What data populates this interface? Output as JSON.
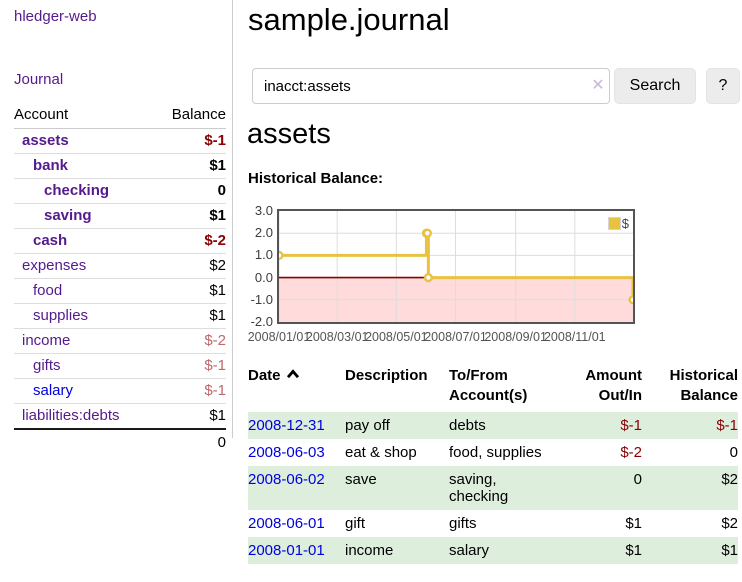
{
  "app": {
    "title": "hledger-web",
    "nav_journal": "Journal"
  },
  "colors": {
    "link_purple": "#551a8b",
    "link_blue": "#0000dd",
    "negative_strong": "#8b0000",
    "negative_soft": "#bb6a6a",
    "row_stripe_green": "#ddeedd",
    "chart_series_gold": "#e8c240",
    "chart_negative_fill": "#ffdbdb",
    "chart_zero_line": "#8b0000",
    "chart_border": "#545454",
    "button_bg": "#ececec"
  },
  "sidebar": {
    "columns": {
      "account": "Account",
      "balance": "Balance"
    },
    "accounts": [
      {
        "name": "assets",
        "indent": 1,
        "bold": true,
        "balance": "$-1",
        "bal_class": "neg-strong"
      },
      {
        "name": "bank",
        "indent": 2,
        "bold": true,
        "balance": "$1",
        "bal_class": ""
      },
      {
        "name": "checking",
        "indent": 3,
        "bold": true,
        "balance": "0",
        "bal_class": ""
      },
      {
        "name": "saving",
        "indent": 3,
        "bold": true,
        "balance": "$1",
        "bal_class": ""
      },
      {
        "name": "cash",
        "indent": 2,
        "bold": true,
        "balance": "$-2",
        "bal_class": "neg-strong"
      },
      {
        "name": "expenses",
        "indent": 1,
        "bold": false,
        "balance": "$2",
        "bal_class": ""
      },
      {
        "name": "food",
        "indent": 2,
        "bold": false,
        "balance": "$1",
        "bal_class": ""
      },
      {
        "name": "supplies",
        "indent": 2,
        "bold": false,
        "balance": "$1",
        "bal_class": ""
      },
      {
        "name": "income",
        "indent": 1,
        "bold": false,
        "balance": "$-2",
        "bal_class": "neg-soft"
      },
      {
        "name": "gifts",
        "indent": 2,
        "bold": false,
        "balance": "$-1",
        "bal_class": "neg-soft"
      },
      {
        "name": "salary",
        "indent": 2,
        "bold": false,
        "balance": "$-1",
        "bal_class": "neg-soft",
        "link_blue": true
      },
      {
        "name": "liabilities:debts",
        "indent": 1,
        "bold": false,
        "balance": "$1",
        "bal_class": ""
      }
    ],
    "total": "0"
  },
  "header": {
    "title": "sample.journal"
  },
  "search": {
    "value": "inacct:assets",
    "clear_icon": "✕",
    "button": "Search",
    "help_button": "?"
  },
  "account_page": {
    "heading": "assets",
    "chart_label": "Historical Balance:"
  },
  "chart_data": {
    "type": "line",
    "step": true,
    "title": "Historical Balance",
    "series": [
      {
        "name": "$",
        "color": "#e8c240",
        "points": [
          [
            "2008-01-01",
            1
          ],
          [
            "2008-06-01",
            2
          ],
          [
            "2008-06-02",
            2
          ],
          [
            "2008-06-03",
            0
          ],
          [
            "2008-12-31",
            -1
          ]
        ]
      }
    ],
    "ylim": [
      -2.0,
      3.0
    ],
    "yticks": [
      "3.0",
      "2.0",
      "1.0",
      "0.0",
      "-1.0",
      "-2.0"
    ],
    "xticks": [
      "2008/01/01",
      "2008/03/01",
      "2008/05/01",
      "2008/07/01",
      "2008/09/01",
      "2008/11/01"
    ],
    "xrange": [
      "2008-01-01",
      "2008-12-31"
    ],
    "grid": true,
    "legend_position": "top-right",
    "legend": "$",
    "negative_fill": "#ffdbdb",
    "zero_line_color": "#8b0000"
  },
  "transactions": {
    "columns": [
      "Date",
      "Description",
      "To/From Account(s)",
      "Amount Out/In",
      "Historical Balance"
    ],
    "sort_icon": "chevron-up",
    "rows": [
      {
        "date": "2008-12-31",
        "description": "pay off",
        "accounts_lines": [
          "debts"
        ],
        "amount": "$-1",
        "amount_neg": true,
        "balance": "$-1",
        "balance_neg": true
      },
      {
        "date": "2008-06-03",
        "description": "eat & shop",
        "accounts_lines": [
          "food, supplies"
        ],
        "amount": "$-2",
        "amount_neg": true,
        "balance": "0",
        "balance_neg": false
      },
      {
        "date": "2008-06-02",
        "description": "save",
        "accounts_lines": [
          "saving,",
          "checking"
        ],
        "amount": "0",
        "amount_neg": false,
        "balance": "$2",
        "balance_neg": false
      },
      {
        "date": "2008-06-01",
        "description": "gift",
        "accounts_lines": [
          "gifts"
        ],
        "amount": "$1",
        "amount_neg": false,
        "balance": "$2",
        "balance_neg": false
      },
      {
        "date": "2008-01-01",
        "description": "income",
        "accounts_lines": [
          "salary"
        ],
        "amount": "$1",
        "amount_neg": false,
        "balance": "$1",
        "balance_neg": false
      }
    ]
  }
}
